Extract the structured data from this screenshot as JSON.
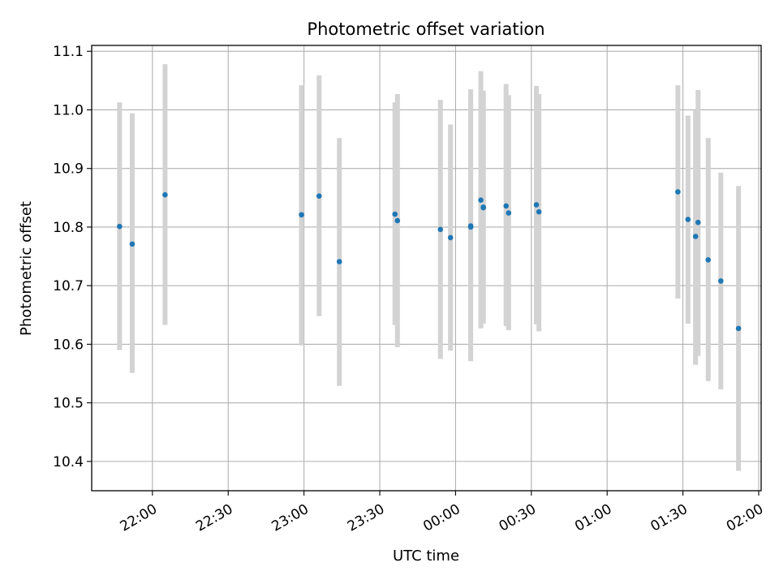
{
  "chart_data": {
    "type": "scatter",
    "title": "Photometric offset variation",
    "xlabel": "UTC time",
    "ylabel": "Photometric offset",
    "x_start": "2000-01-01T21:35",
    "xlim": [
      "21:35",
      "02:00"
    ],
    "ylim": [
      10.35,
      11.11
    ],
    "x_ticks": [
      "22:00",
      "22:30",
      "23:00",
      "23:30",
      "00:00",
      "00:30",
      "01:00",
      "01:30",
      "02:00"
    ],
    "y_ticks": [
      "10.4",
      "10.5",
      "10.6",
      "10.7",
      "10.8",
      "10.9",
      "11.0",
      "11.1"
    ],
    "grid": true,
    "point_color": "#1f77b4",
    "errorbar_color": "#d3d3d3",
    "points": [
      {
        "t": "21:47",
        "y": 10.801,
        "lo": 10.59,
        "hi": 11.013
      },
      {
        "t": "21:52",
        "y": 10.771,
        "lo": 10.551,
        "hi": 10.994
      },
      {
        "t": "22:05",
        "y": 10.855,
        "lo": 10.633,
        "hi": 11.078
      },
      {
        "t": "22:59",
        "y": 10.821,
        "lo": 10.598,
        "hi": 11.042
      },
      {
        "t": "23:06",
        "y": 10.853,
        "lo": 10.648,
        "hi": 11.059
      },
      {
        "t": "23:14",
        "y": 10.741,
        "lo": 10.529,
        "hi": 10.952
      },
      {
        "t": "23:36",
        "y": 10.822,
        "lo": 10.633,
        "hi": 11.013
      },
      {
        "t": "23:37",
        "y": 10.811,
        "lo": 10.595,
        "hi": 11.027
      },
      {
        "t": "23:54",
        "y": 10.796,
        "lo": 10.575,
        "hi": 11.017
      },
      {
        "t": "23:58",
        "y": 10.782,
        "lo": 10.589,
        "hi": 10.975
      },
      {
        "t": "00:06",
        "y": 10.802,
        "lo": 10.571,
        "hi": 11.035
      },
      {
        "t": "00:06",
        "y": 10.8,
        "lo": 10.58,
        "hi": 11.02
      },
      {
        "t": "00:10",
        "y": 10.846,
        "lo": 10.627,
        "hi": 11.066
      },
      {
        "t": "00:11",
        "y": 10.834,
        "lo": 10.635,
        "hi": 11.033
      },
      {
        "t": "00:11",
        "y": 10.833,
        "lo": 10.64,
        "hi": 11.025
      },
      {
        "t": "00:20",
        "y": 10.836,
        "lo": 10.631,
        "hi": 11.044
      },
      {
        "t": "00:21",
        "y": 10.824,
        "lo": 10.624,
        "hi": 11.025
      },
      {
        "t": "00:32",
        "y": 10.838,
        "lo": 10.634,
        "hi": 11.041
      },
      {
        "t": "00:33",
        "y": 10.826,
        "lo": 10.622,
        "hi": 11.027
      },
      {
        "t": "01:28",
        "y": 10.86,
        "lo": 10.678,
        "hi": 11.042
      },
      {
        "t": "01:32",
        "y": 10.813,
        "lo": 10.635,
        "hi": 10.99
      },
      {
        "t": "01:35",
        "y": 10.784,
        "lo": 10.565,
        "hi": 11.0
      },
      {
        "t": "01:36",
        "y": 10.808,
        "lo": 10.58,
        "hi": 11.034
      },
      {
        "t": "01:40",
        "y": 10.744,
        "lo": 10.537,
        "hi": 10.952
      },
      {
        "t": "01:45",
        "y": 10.708,
        "lo": 10.523,
        "hi": 10.893
      },
      {
        "t": "01:52",
        "y": 10.627,
        "lo": 10.384,
        "hi": 10.87
      }
    ]
  }
}
